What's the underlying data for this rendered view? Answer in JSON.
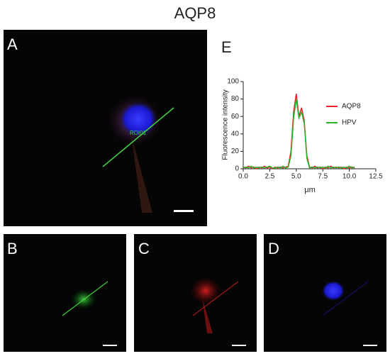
{
  "title": "AQP8",
  "panels": [
    "A",
    "B",
    "C",
    "D",
    "E"
  ],
  "roi_label": "ROI01",
  "chart_data": {
    "type": "line",
    "ylabel": "Fluorescence intensity",
    "xlabel": "μm",
    "xlim": [
      0,
      12.5
    ],
    "xticks": [
      {
        "value": 0,
        "label": "0.0"
      },
      2.5,
      {
        "value": 5,
        "label": "5.0"
      },
      7.5,
      {
        "value": 10,
        "label": "10.0"
      },
      12.5
    ],
    "ylim": [
      0,
      100
    ],
    "yticks": [
      0,
      20,
      40,
      60,
      80,
      100
    ],
    "x": [
      0,
      0.25,
      0.5,
      0.75,
      1,
      1.25,
      1.5,
      1.75,
      2,
      2.25,
      2.5,
      2.75,
      3,
      3.25,
      3.5,
      3.75,
      4,
      4.25,
      4.5,
      4.75,
      5,
      5.25,
      5.5,
      5.75,
      6,
      6.25,
      6.5,
      6.75,
      7,
      7.25,
      7.5,
      7.75,
      8,
      8.25,
      8.5,
      8.75,
      9,
      9.25,
      9.5,
      9.75,
      10,
      10.25,
      10.5
    ],
    "series": [
      {
        "name": "AQP8",
        "color": "#e8202a",
        "values": [
          2,
          1,
          3,
          1,
          2,
          0,
          2,
          1,
          3,
          1,
          2,
          0,
          2,
          1,
          2,
          1,
          2,
          3,
          20,
          65,
          86,
          60,
          70,
          55,
          15,
          2,
          1,
          3,
          1,
          2,
          0,
          2,
          1,
          3,
          1,
          2,
          1,
          2,
          0,
          2,
          1,
          2,
          1
        ]
      },
      {
        "name": "HPV",
        "color": "#2bb52b",
        "values": [
          1,
          2,
          1,
          3,
          1,
          2,
          1,
          2,
          1,
          2,
          3,
          1,
          1,
          2,
          1,
          3,
          1,
          2,
          15,
          58,
          80,
          58,
          65,
          52,
          12,
          1,
          2,
          1,
          2,
          1,
          2,
          1,
          3,
          1,
          2,
          1,
          2,
          1,
          2,
          1,
          3,
          1,
          2
        ]
      }
    ]
  }
}
